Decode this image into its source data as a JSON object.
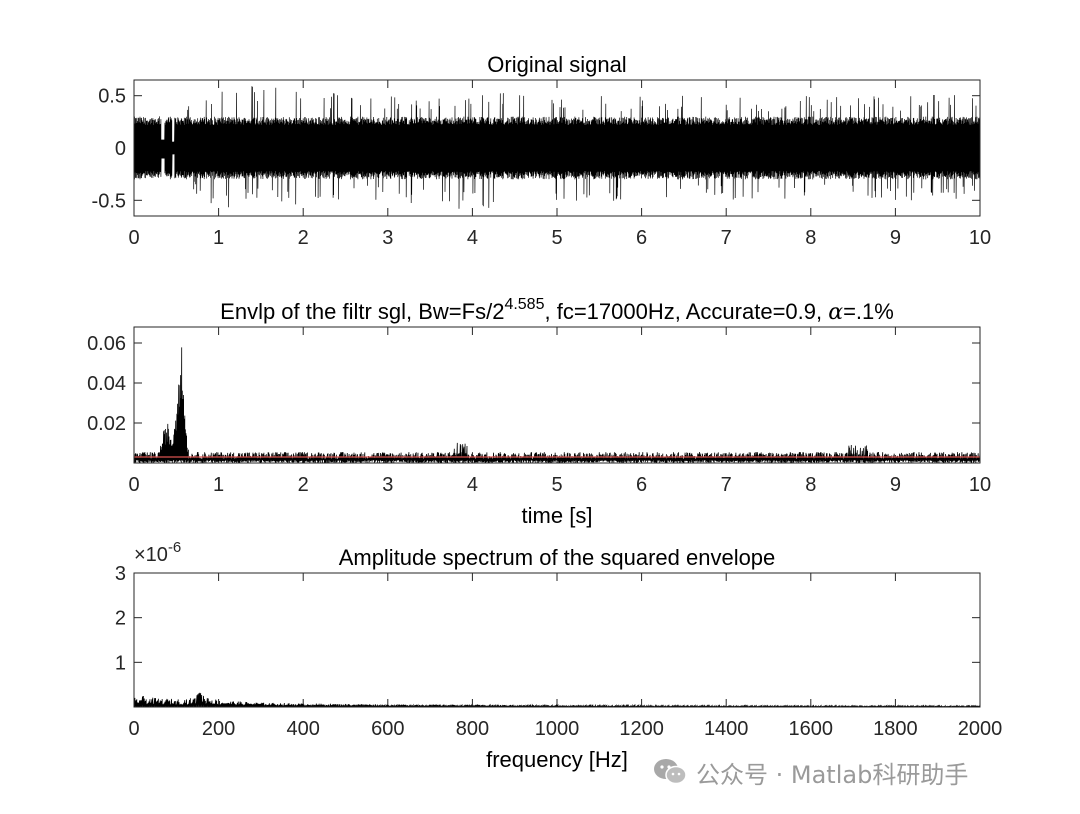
{
  "chart_data": [
    {
      "type": "line",
      "title": "Original signal",
      "xlabel": "",
      "ylabel": "",
      "xlim": [
        0,
        10
      ],
      "ylim": [
        -0.65,
        0.65
      ],
      "xticks": [
        "0",
        "1",
        "2",
        "3",
        "4",
        "5",
        "6",
        "7",
        "8",
        "9",
        "10"
      ],
      "yticks": [
        "-0.5",
        "0",
        "0.5"
      ],
      "grid": false,
      "series": [
        {
          "color": "#000000",
          "description_envelope": "dense vibration noise, roughly |y|<=0.3 with spikes to about 0.6; visible gap segments near t=0.3-0.5 s",
          "x": [
            0,
            0.5,
            1,
            1.5,
            2,
            3,
            4,
            5,
            6,
            7,
            8,
            9,
            10
          ],
          "y_max": [
            0.33,
            0.35,
            0.55,
            0.62,
            0.55,
            0.5,
            0.55,
            0.5,
            0.5,
            0.5,
            0.5,
            0.5,
            0.52
          ],
          "y_min": [
            -0.3,
            -0.33,
            -0.58,
            -0.55,
            -0.55,
            -0.5,
            -0.6,
            -0.55,
            -0.5,
            -0.5,
            -0.5,
            -0.5,
            -0.5
          ]
        }
      ]
    },
    {
      "type": "line",
      "title_prefix": "Envlp of the filtr sgl, Bw=Fs/2",
      "title_exponent": "4.585",
      "title_suffix": ", fc=17000Hz, Accurate=0.9, ",
      "title_alpha": "α",
      "title_end": "=.1%",
      "xlabel": "time [s]",
      "ylabel": "",
      "xlim": [
        0,
        10
      ],
      "ylim": [
        0,
        0.068
      ],
      "xticks": [
        "0",
        "1",
        "2",
        "3",
        "4",
        "5",
        "6",
        "7",
        "8",
        "9",
        "10"
      ],
      "yticks": [
        "0.02",
        "0.04",
        "0.06"
      ],
      "grid": false,
      "series": [
        {
          "color": "#000000",
          "x": [
            0,
            0.3,
            0.35,
            0.4,
            0.45,
            0.5,
            0.52,
            0.55,
            0.58,
            0.6,
            0.65,
            1,
            3.8,
            3.9,
            8.5,
            10
          ],
          "y": [
            0.004,
            0.006,
            0.016,
            0.02,
            0.012,
            0.03,
            0.045,
            0.066,
            0.05,
            0.028,
            0.004,
            0.006,
            0.01,
            0.009,
            0.009,
            0.005
          ]
        },
        {
          "color": "#d9534f",
          "description": "threshold line",
          "x": [
            0,
            10
          ],
          "y": [
            0.003,
            0.003
          ]
        }
      ]
    },
    {
      "type": "line",
      "title": "Amplitude spectrum of the squared envelope",
      "xlabel": "frequency [Hz]",
      "ylabel": "",
      "y_multiplier_base": "×10",
      "y_multiplier_exp": "-6",
      "xlim": [
        0,
        2000
      ],
      "ylim": [
        0,
        3
      ],
      "xticks": [
        "0",
        "200",
        "400",
        "600",
        "800",
        "1000",
        "1200",
        "1400",
        "1600",
        "1800",
        "2000"
      ],
      "yticks": [
        "1",
        "2",
        "3"
      ],
      "grid": false,
      "series": [
        {
          "color": "#000000",
          "x": [
            0,
            20,
            50,
            100,
            140,
            155,
            200,
            300,
            400,
            600,
            800,
            1000,
            1500,
            2000
          ],
          "y": [
            0.2,
            0.25,
            0.2,
            0.18,
            0.2,
            0.32,
            0.15,
            0.1,
            0.08,
            0.06,
            0.05,
            0.04,
            0.03,
            0.03
          ]
        }
      ]
    }
  ],
  "watermark": {
    "text": "公众号 · Matlab科研助手",
    "logo_icon": "wechat-logo-icon"
  }
}
